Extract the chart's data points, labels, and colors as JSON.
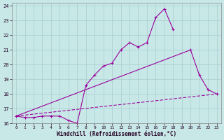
{
  "xlabel": "Windchill (Refroidissement éolien,°C)",
  "xlim": [
    -0.5,
    23.5
  ],
  "ylim": [
    16,
    24.2
  ],
  "yticks": [
    16,
    17,
    18,
    19,
    20,
    21,
    22,
    23,
    24
  ],
  "xticks": [
    0,
    1,
    2,
    3,
    4,
    5,
    6,
    7,
    8,
    9,
    10,
    11,
    12,
    13,
    14,
    15,
    16,
    17,
    18,
    19,
    20,
    21,
    22,
    23
  ],
  "bg_color": "#c8e8e8",
  "grid_color": "#a8cccc",
  "line_color": "#990099",
  "series": [
    {
      "name": "zigzag_marked",
      "x": [
        0,
        1,
        2,
        3,
        4,
        5,
        6,
        7,
        8,
        9,
        10,
        11,
        12,
        13,
        14,
        15,
        16,
        17,
        18
      ],
      "y": [
        16.5,
        16.4,
        16.4,
        16.5,
        16.5,
        16.5,
        16.2,
        16.0,
        18.6,
        19.3,
        19.9,
        20.1,
        21.0,
        21.5,
        21.2,
        21.5,
        23.2,
        23.8,
        22.4
      ],
      "marker": true,
      "linestyle": "solid",
      "linewidth": 0.8
    },
    {
      "name": "straight_line",
      "x": [
        0,
        20
      ],
      "y": [
        16.5,
        21.0
      ],
      "marker": false,
      "linestyle": "solid",
      "linewidth": 0.8
    },
    {
      "name": "drop_marked",
      "x": [
        20,
        21,
        22,
        23
      ],
      "y": [
        21.0,
        19.3,
        18.3,
        18.0
      ],
      "marker": true,
      "linestyle": "solid",
      "linewidth": 0.8
    },
    {
      "name": "flat_dashed",
      "x": [
        0,
        23
      ],
      "y": [
        16.5,
        18.0
      ],
      "marker": false,
      "linestyle": "dashed",
      "linewidth": 0.8
    }
  ]
}
